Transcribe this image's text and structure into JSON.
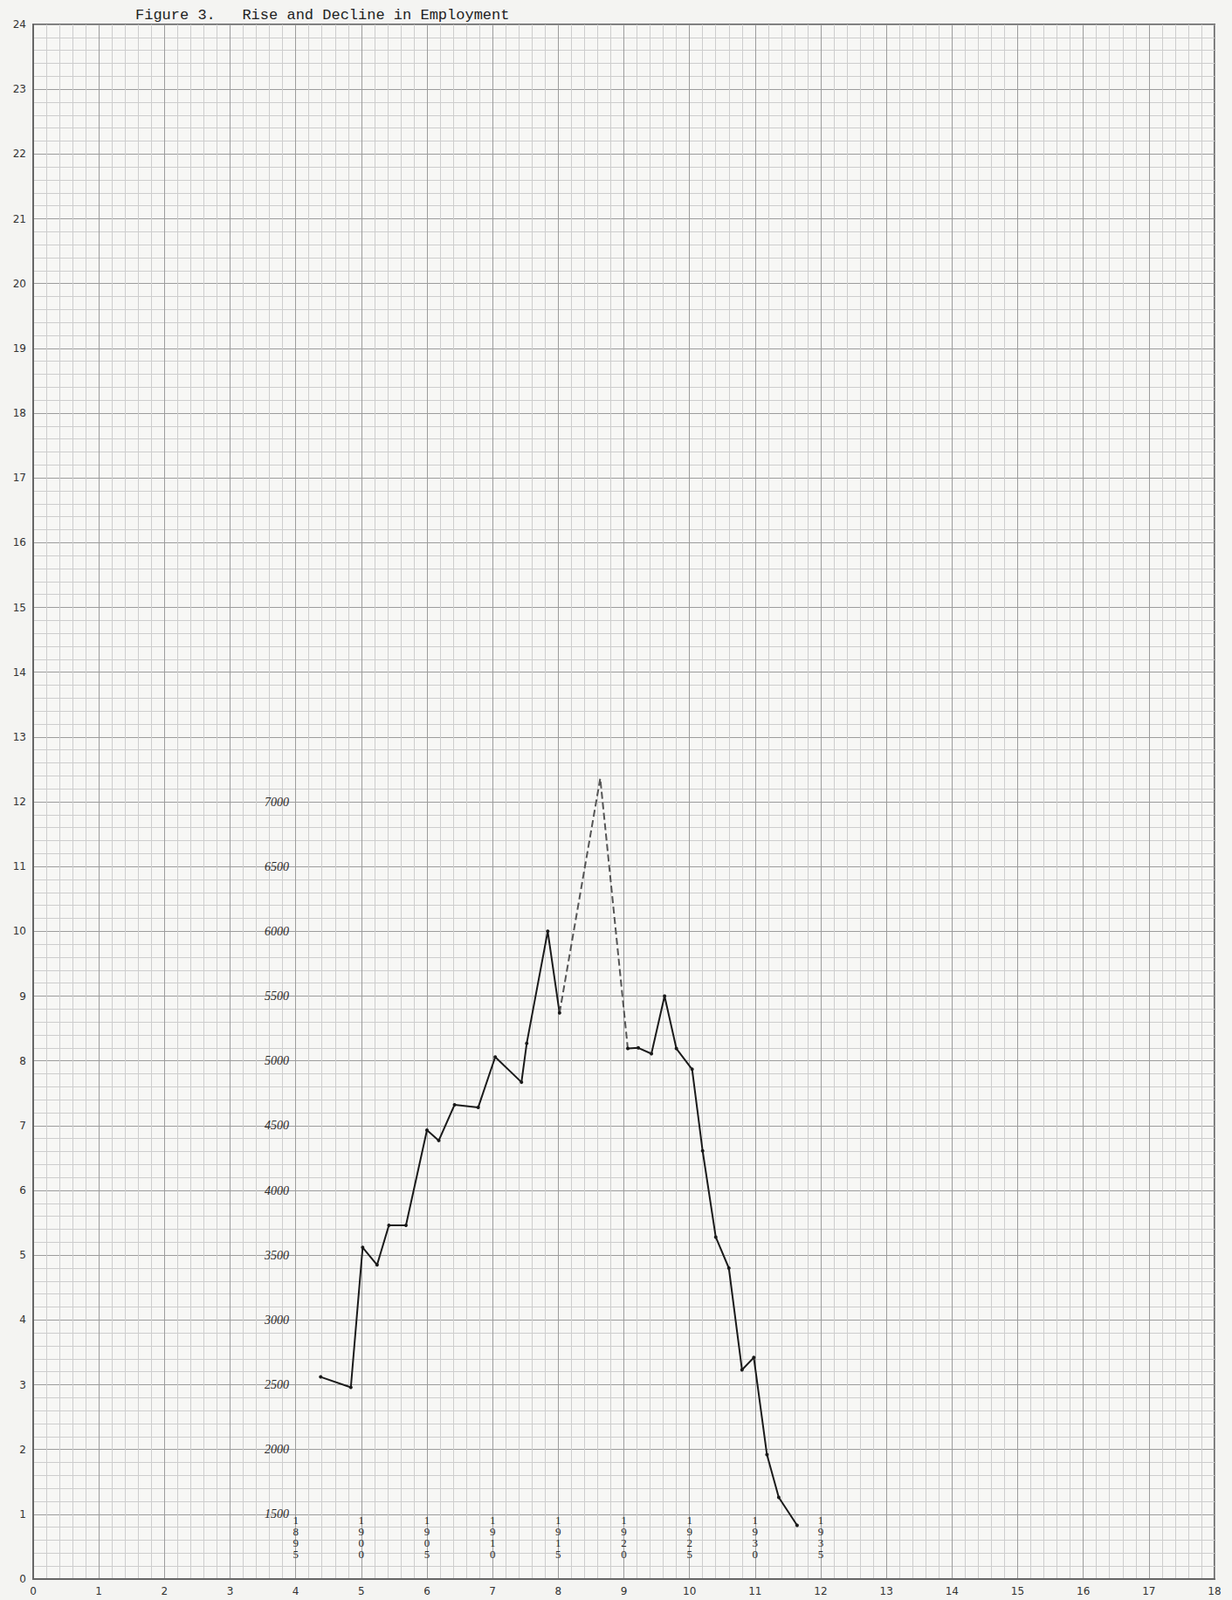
{
  "chart_data": {
    "type": "line",
    "title": "Figure 3.   Rise and Decline in Employment",
    "xlim": [
      0,
      18
    ],
    "xticks": [
      0,
      1,
      2,
      3,
      4,
      5,
      6,
      7,
      8,
      9,
      10,
      11,
      12,
      13,
      14,
      15,
      16,
      17,
      18
    ],
    "ylim": [
      0,
      24
    ],
    "yticks": [
      0,
      1,
      2,
      3,
      4,
      5,
      6,
      7,
      8,
      9,
      10,
      11,
      12,
      13,
      14,
      15,
      16,
      17,
      18,
      19,
      20,
      21,
      22,
      23,
      24
    ],
    "x2lim": [
      1875,
      1965
    ],
    "x2ticks": [
      1895,
      1900,
      1905,
      1910,
      1915,
      1920,
      1925,
      1930,
      1935
    ],
    "y2lim": [
      1000,
      13000
    ],
    "y2ticks": [
      1500,
      2000,
      2500,
      3000,
      3500,
      4000,
      4500,
      5000,
      5500,
      6000,
      6500,
      7000
    ],
    "grid": true,
    "series": [
      {
        "axis": "y2",
        "line_style": "solid",
        "marker": "circle",
        "color": "#1a1a1a",
        "x": [
          1896.9,
          1899.2,
          1900.1,
          1901.2,
          1902.1,
          1903.4,
          1905.0,
          1905.9,
          1907.1,
          1908.9,
          1910.2,
          1912.2,
          1912.6,
          1914.2,
          1915.1
        ],
        "values": [
          2560,
          2480,
          3560,
          3425,
          3730,
          3730,
          4465,
          4385,
          4660,
          4640,
          5030,
          4835,
          5135,
          6000,
          5370
        ]
      },
      {
        "axis": "y2",
        "line_style": "dashed",
        "marker": "none",
        "color": "#555555",
        "x": [
          1915.1,
          1918.2,
          1920.3
        ],
        "values": [
          5370,
          7180,
          5095
        ]
      },
      {
        "axis": "y2",
        "line_style": "solid",
        "marker": "circle",
        "color": "#1a1a1a",
        "x": [
          1920.3,
          1921.1,
          1922.1,
          1923.1,
          1924.0,
          1925.2,
          1926.0,
          1927.0,
          1928.0,
          1929.0,
          1929.9,
          1930.9,
          1931.8,
          1933.2
        ],
        "values": [
          5095,
          5100,
          5055,
          5500,
          5095,
          4935,
          4305,
          3640,
          3400,
          2615,
          2710,
          1960,
          1630,
          1415
        ]
      }
    ]
  }
}
